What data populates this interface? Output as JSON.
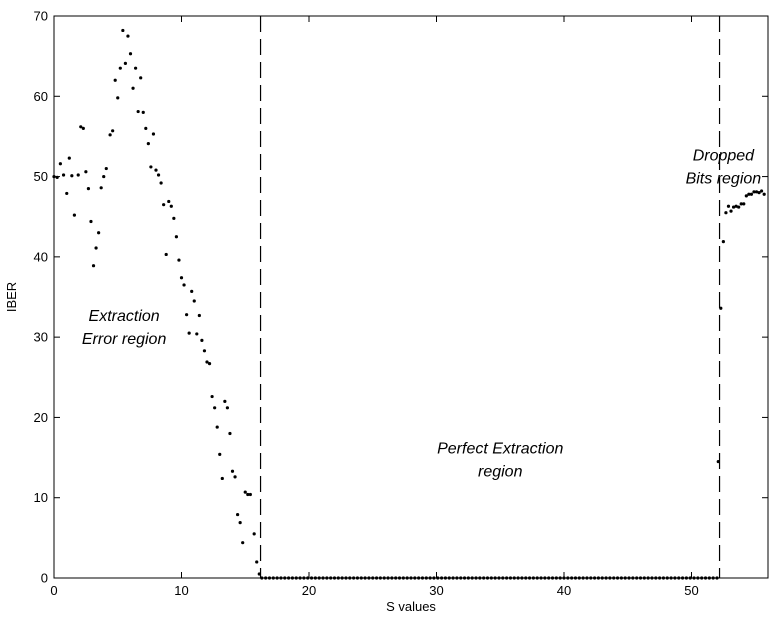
{
  "chart_data": {
    "type": "scatter",
    "title": "",
    "xlabel": "S values",
    "ylabel": "IBER",
    "xlim": [
      0,
      56
    ],
    "ylim": [
      0,
      70
    ],
    "xticks": [
      0,
      10,
      20,
      30,
      40,
      50
    ],
    "yticks": [
      0,
      10,
      20,
      30,
      40,
      50,
      60,
      70
    ],
    "grid": false,
    "point_color": "#000000",
    "vertical_lines": [
      {
        "x": 16.2,
        "style": "dashed"
      },
      {
        "x": 52.2,
        "style": "dashed"
      }
    ],
    "annotations": [
      {
        "id": "extraction-error",
        "lines": [
          "Extraction",
          "Error region"
        ],
        "x": 5.5,
        "y": 32
      },
      {
        "id": "perfect-extraction",
        "lines": [
          "Perfect Extraction",
          "region"
        ],
        "x": 35,
        "y": 15.5
      },
      {
        "id": "dropped-bits",
        "lines": [
          "Dropped",
          "Bits region"
        ],
        "x": 52.5,
        "y": 52
      }
    ],
    "points": [
      [
        0.0,
        50
      ],
      [
        0.25,
        49.9
      ],
      [
        0.5,
        51.6
      ],
      [
        0.75,
        50.2
      ],
      [
        1.0,
        47.9
      ],
      [
        1.2,
        52.3
      ],
      [
        1.4,
        50.1
      ],
      [
        1.6,
        45.2
      ],
      [
        1.9,
        50.2
      ],
      [
        2.1,
        56.2
      ],
      [
        2.3,
        56
      ],
      [
        2.5,
        50.6
      ],
      [
        2.7,
        48.5
      ],
      [
        2.9,
        44.4
      ],
      [
        3.1,
        38.9
      ],
      [
        3.3,
        41.1
      ],
      [
        3.5,
        43
      ],
      [
        3.7,
        48.6
      ],
      [
        3.9,
        50
      ],
      [
        4.1,
        51
      ],
      [
        4.4,
        55.2
      ],
      [
        4.6,
        55.7
      ],
      [
        4.8,
        62
      ],
      [
        5.0,
        59.8
      ],
      [
        5.2,
        63.5
      ],
      [
        5.4,
        68.2
      ],
      [
        5.6,
        64.1
      ],
      [
        5.8,
        67.5
      ],
      [
        6.0,
        65.3
      ],
      [
        6.2,
        61
      ],
      [
        6.4,
        63.5
      ],
      [
        6.6,
        58.1
      ],
      [
        6.8,
        62.3
      ],
      [
        7.0,
        58
      ],
      [
        7.2,
        56
      ],
      [
        7.4,
        54.1
      ],
      [
        7.6,
        51.2
      ],
      [
        7.8,
        55.3
      ],
      [
        8.0,
        50.8
      ],
      [
        8.2,
        50.2
      ],
      [
        8.4,
        49.2
      ],
      [
        8.6,
        46.5
      ],
      [
        8.8,
        40.3
      ],
      [
        9.0,
        46.9
      ],
      [
        9.2,
        46.3
      ],
      [
        9.4,
        44.8
      ],
      [
        9.6,
        42.5
      ],
      [
        9.8,
        39.6
      ],
      [
        10.0,
        37.4
      ],
      [
        10.2,
        36.5
      ],
      [
        10.4,
        32.8
      ],
      [
        10.6,
        30.5
      ],
      [
        10.8,
        35.7
      ],
      [
        11.0,
        34.5
      ],
      [
        11.2,
        30.4
      ],
      [
        11.4,
        32.7
      ],
      [
        11.6,
        29.6
      ],
      [
        11.8,
        28.3
      ],
      [
        12.0,
        26.9
      ],
      [
        12.2,
        26.7
      ],
      [
        12.4,
        22.6
      ],
      [
        12.6,
        21.2
      ],
      [
        12.8,
        18.8
      ],
      [
        13.0,
        15.4
      ],
      [
        13.2,
        12.4
      ],
      [
        13.4,
        22
      ],
      [
        13.6,
        21.2
      ],
      [
        13.8,
        18
      ],
      [
        14.0,
        13.3
      ],
      [
        14.2,
        12.6
      ],
      [
        14.4,
        7.9
      ],
      [
        14.6,
        6.9
      ],
      [
        14.8,
        4.4
      ],
      [
        15.0,
        10.7
      ],
      [
        15.2,
        10.4
      ],
      [
        15.4,
        10.4
      ],
      [
        15.7,
        5.5
      ],
      [
        15.9,
        2
      ],
      [
        16.1,
        0.5
      ],
      [
        16.3,
        0
      ],
      [
        16.6,
        0
      ],
      [
        16.9,
        0
      ],
      [
        17.2,
        0
      ],
      [
        17.5,
        0
      ],
      [
        17.8,
        0
      ],
      [
        18.1,
        0
      ],
      [
        18.4,
        0
      ],
      [
        18.7,
        0
      ],
      [
        19.0,
        0
      ],
      [
        19.3,
        0
      ],
      [
        19.6,
        0
      ],
      [
        19.9,
        0
      ],
      [
        20.2,
        0
      ],
      [
        20.5,
        0
      ],
      [
        20.8,
        0
      ],
      [
        21.1,
        0
      ],
      [
        21.4,
        0
      ],
      [
        21.7,
        0
      ],
      [
        22.0,
        0
      ],
      [
        22.3,
        0
      ],
      [
        22.6,
        0
      ],
      [
        22.9,
        0
      ],
      [
        23.2,
        0
      ],
      [
        23.5,
        0
      ],
      [
        23.8,
        0
      ],
      [
        24.1,
        0
      ],
      [
        24.4,
        0
      ],
      [
        24.7,
        0
      ],
      [
        25.0,
        0
      ],
      [
        25.3,
        0
      ],
      [
        25.6,
        0
      ],
      [
        25.9,
        0
      ],
      [
        26.2,
        0
      ],
      [
        26.5,
        0
      ],
      [
        26.8,
        0
      ],
      [
        27.1,
        0
      ],
      [
        27.4,
        0
      ],
      [
        27.7,
        0
      ],
      [
        28.0,
        0
      ],
      [
        28.3,
        0
      ],
      [
        28.6,
        0
      ],
      [
        28.9,
        0
      ],
      [
        29.2,
        0
      ],
      [
        29.5,
        0
      ],
      [
        29.8,
        0
      ],
      [
        30.1,
        0
      ],
      [
        30.4,
        0
      ],
      [
        30.7,
        0
      ],
      [
        31.0,
        0
      ],
      [
        31.3,
        0
      ],
      [
        31.6,
        0
      ],
      [
        31.9,
        0
      ],
      [
        32.2,
        0
      ],
      [
        32.5,
        0
      ],
      [
        32.8,
        0
      ],
      [
        33.1,
        0
      ],
      [
        33.4,
        0
      ],
      [
        33.7,
        0
      ],
      [
        34.0,
        0
      ],
      [
        34.3,
        0
      ],
      [
        34.6,
        0
      ],
      [
        34.9,
        0
      ],
      [
        35.2,
        0
      ],
      [
        35.5,
        0
      ],
      [
        35.8,
        0
      ],
      [
        36.1,
        0
      ],
      [
        36.4,
        0
      ],
      [
        36.7,
        0
      ],
      [
        37.0,
        0
      ],
      [
        37.3,
        0
      ],
      [
        37.6,
        0
      ],
      [
        37.9,
        0
      ],
      [
        38.2,
        0
      ],
      [
        38.5,
        0
      ],
      [
        38.8,
        0
      ],
      [
        39.1,
        0
      ],
      [
        39.4,
        0
      ],
      [
        39.7,
        0
      ],
      [
        40.0,
        0
      ],
      [
        40.3,
        0
      ],
      [
        40.6,
        0
      ],
      [
        40.9,
        0
      ],
      [
        41.2,
        0
      ],
      [
        41.5,
        0
      ],
      [
        41.8,
        0
      ],
      [
        42.1,
        0
      ],
      [
        42.4,
        0
      ],
      [
        42.7,
        0
      ],
      [
        43.0,
        0
      ],
      [
        43.3,
        0
      ],
      [
        43.6,
        0
      ],
      [
        43.9,
        0
      ],
      [
        44.2,
        0
      ],
      [
        44.5,
        0
      ],
      [
        44.8,
        0
      ],
      [
        45.1,
        0
      ],
      [
        45.4,
        0
      ],
      [
        45.7,
        0
      ],
      [
        46.0,
        0
      ],
      [
        46.3,
        0
      ],
      [
        46.6,
        0
      ],
      [
        46.9,
        0
      ],
      [
        47.2,
        0
      ],
      [
        47.5,
        0
      ],
      [
        47.8,
        0
      ],
      [
        48.1,
        0
      ],
      [
        48.4,
        0
      ],
      [
        48.7,
        0
      ],
      [
        49.0,
        0
      ],
      [
        49.3,
        0
      ],
      [
        49.6,
        0
      ],
      [
        49.9,
        0
      ],
      [
        50.2,
        0
      ],
      [
        50.5,
        0
      ],
      [
        50.8,
        0
      ],
      [
        51.1,
        0
      ],
      [
        51.4,
        0
      ],
      [
        51.7,
        0
      ],
      [
        52.0,
        0
      ],
      [
        52.1,
        14.5
      ],
      [
        52.3,
        33.6
      ],
      [
        52.5,
        41.9
      ],
      [
        52.7,
        45.5
      ],
      [
        52.9,
        46.3
      ],
      [
        53.1,
        45.7
      ],
      [
        53.3,
        46.2
      ],
      [
        53.5,
        46.3
      ],
      [
        53.7,
        46.2
      ],
      [
        53.9,
        46.6
      ],
      [
        54.1,
        46.6
      ],
      [
        54.3,
        47.6
      ],
      [
        54.5,
        47.8
      ],
      [
        54.7,
        47.8
      ],
      [
        54.9,
        48.1
      ],
      [
        55.1,
        48.1
      ],
      [
        55.3,
        48
      ],
      [
        55.5,
        48.2
      ],
      [
        55.7,
        47.8
      ]
    ]
  }
}
